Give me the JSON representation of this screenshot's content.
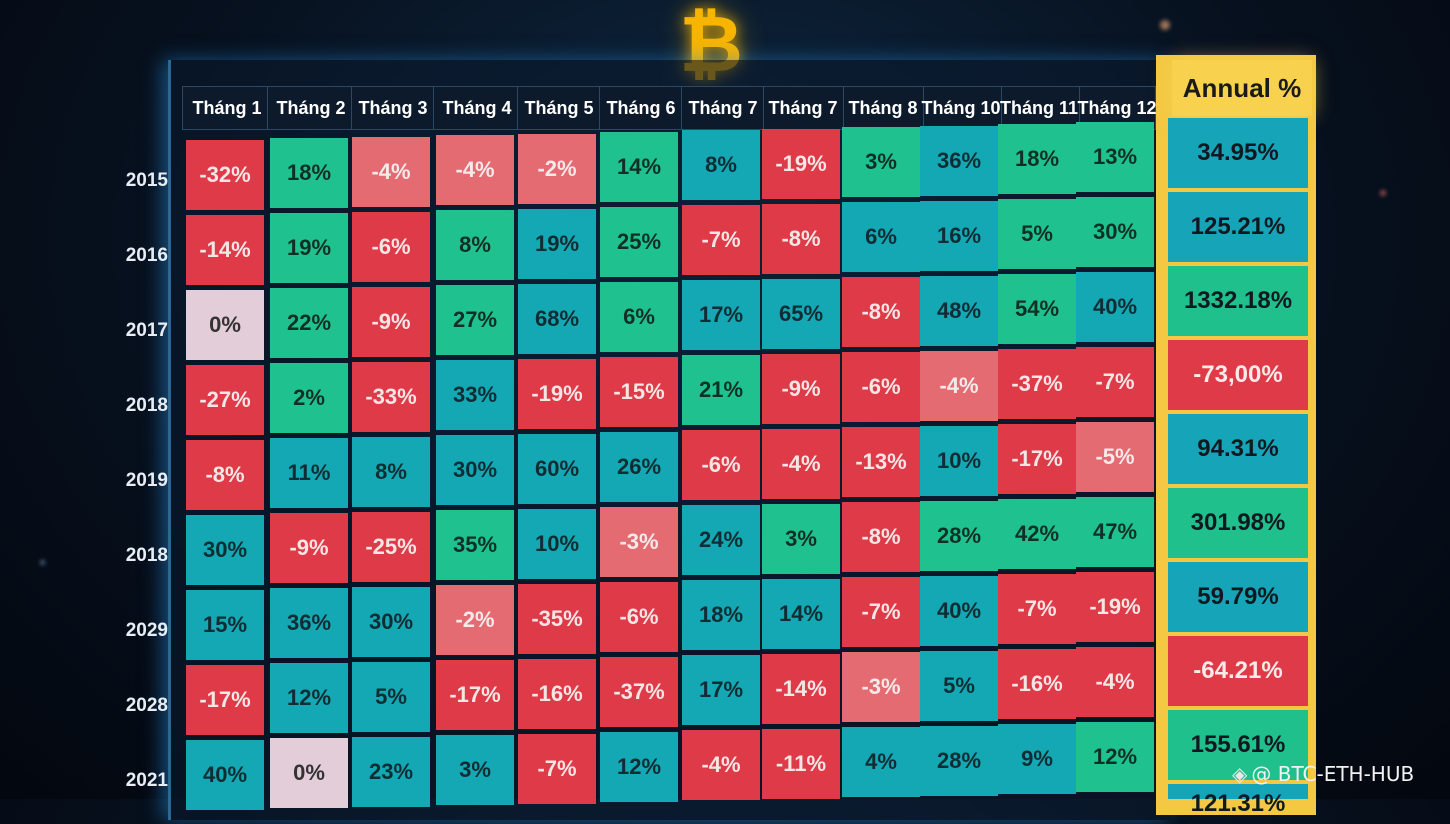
{
  "logo": {
    "glyph": "₿",
    "color": "#f7b500"
  },
  "watermark": {
    "icon": "binance-diamond-icon",
    "text": "@ BTC-ETH-HUB"
  },
  "chart_data": {
    "type": "heatmap",
    "title": "",
    "columns": [
      "Tháng 1",
      "Tháng 2",
      "Tháng 3",
      "Tháng 4",
      "Tháng 5",
      "Tháng 6",
      "Tháng 7",
      "Tháng 7",
      "Tháng 8",
      "Tháng 10",
      "Tháng 11",
      "Tháng 12"
    ],
    "annual_header": "Annual %",
    "rows": [
      {
        "year": "2015",
        "values": [
          "-32%",
          "18%",
          "-4%",
          "-4%",
          "-2%",
          "14%",
          "8%",
          "-19%",
          "3%",
          "36%",
          "18%",
          "13%"
        ],
        "annual": "34.95%"
      },
      {
        "year": "2016",
        "values": [
          "-14%",
          "19%",
          "-6%",
          "8%",
          "19%",
          "25%",
          "-7%",
          "-8%",
          "6%",
          "16%",
          "5%",
          "30%"
        ],
        "annual": "125.21%"
      },
      {
        "year": "2017",
        "values": [
          "0%",
          "22%",
          "-9%",
          "27%",
          "68%",
          "6%",
          "17%",
          "65%",
          "-8%",
          "48%",
          "54%",
          "40%"
        ],
        "annual": "1332.18%"
      },
      {
        "year": "2018",
        "values": [
          "-27%",
          "2%",
          "-33%",
          "33%",
          "-19%",
          "-15%",
          "21%",
          "-9%",
          "-6%",
          "-4%",
          "-37%",
          "-7%"
        ],
        "annual": "-73,00%"
      },
      {
        "year": "2019",
        "values": [
          "-8%",
          "11%",
          "8%",
          "30%",
          "60%",
          "26%",
          "-6%",
          "-4%",
          "-13%",
          "10%",
          "-17%",
          "-5%"
        ],
        "annual": "94.31%"
      },
      {
        "year": "2018",
        "values": [
          "30%",
          "-9%",
          "-25%",
          "35%",
          "10%",
          "-3%",
          "24%",
          "3%",
          "-8%",
          "28%",
          "42%",
          "47%"
        ],
        "annual": "301.98%"
      },
      {
        "year": "2029",
        "values": [
          "15%",
          "36%",
          "30%",
          "-2%",
          "-35%",
          "-6%",
          "18%",
          "14%",
          "-7%",
          "40%",
          "-7%",
          "-19%"
        ],
        "annual": "59.79%"
      },
      {
        "year": "2028",
        "values": [
          "-17%",
          "12%",
          "5%",
          "-17%",
          "-16%",
          "-37%",
          "17%",
          "-14%",
          "-3%",
          "5%",
          "-16%",
          "-4%"
        ],
        "annual": "-64.21%"
      },
      {
        "year": "2021",
        "values": [
          "40%",
          "0%",
          "23%",
          "3%",
          "-7%",
          "12%",
          "-4%",
          "-11%",
          "4%",
          "28%",
          "9%",
          "12%"
        ],
        "annual": "155.61%"
      }
    ],
    "partial_last_annual": "121.31%",
    "colors": {
      "strong_negative": "#df3a48",
      "mild_negative": "#e56b72",
      "positive_green": "#1fc28e",
      "positive_teal": "#14a7b4",
      "zero": "#e3cdd8",
      "annual_column": "#f4c842"
    }
  }
}
